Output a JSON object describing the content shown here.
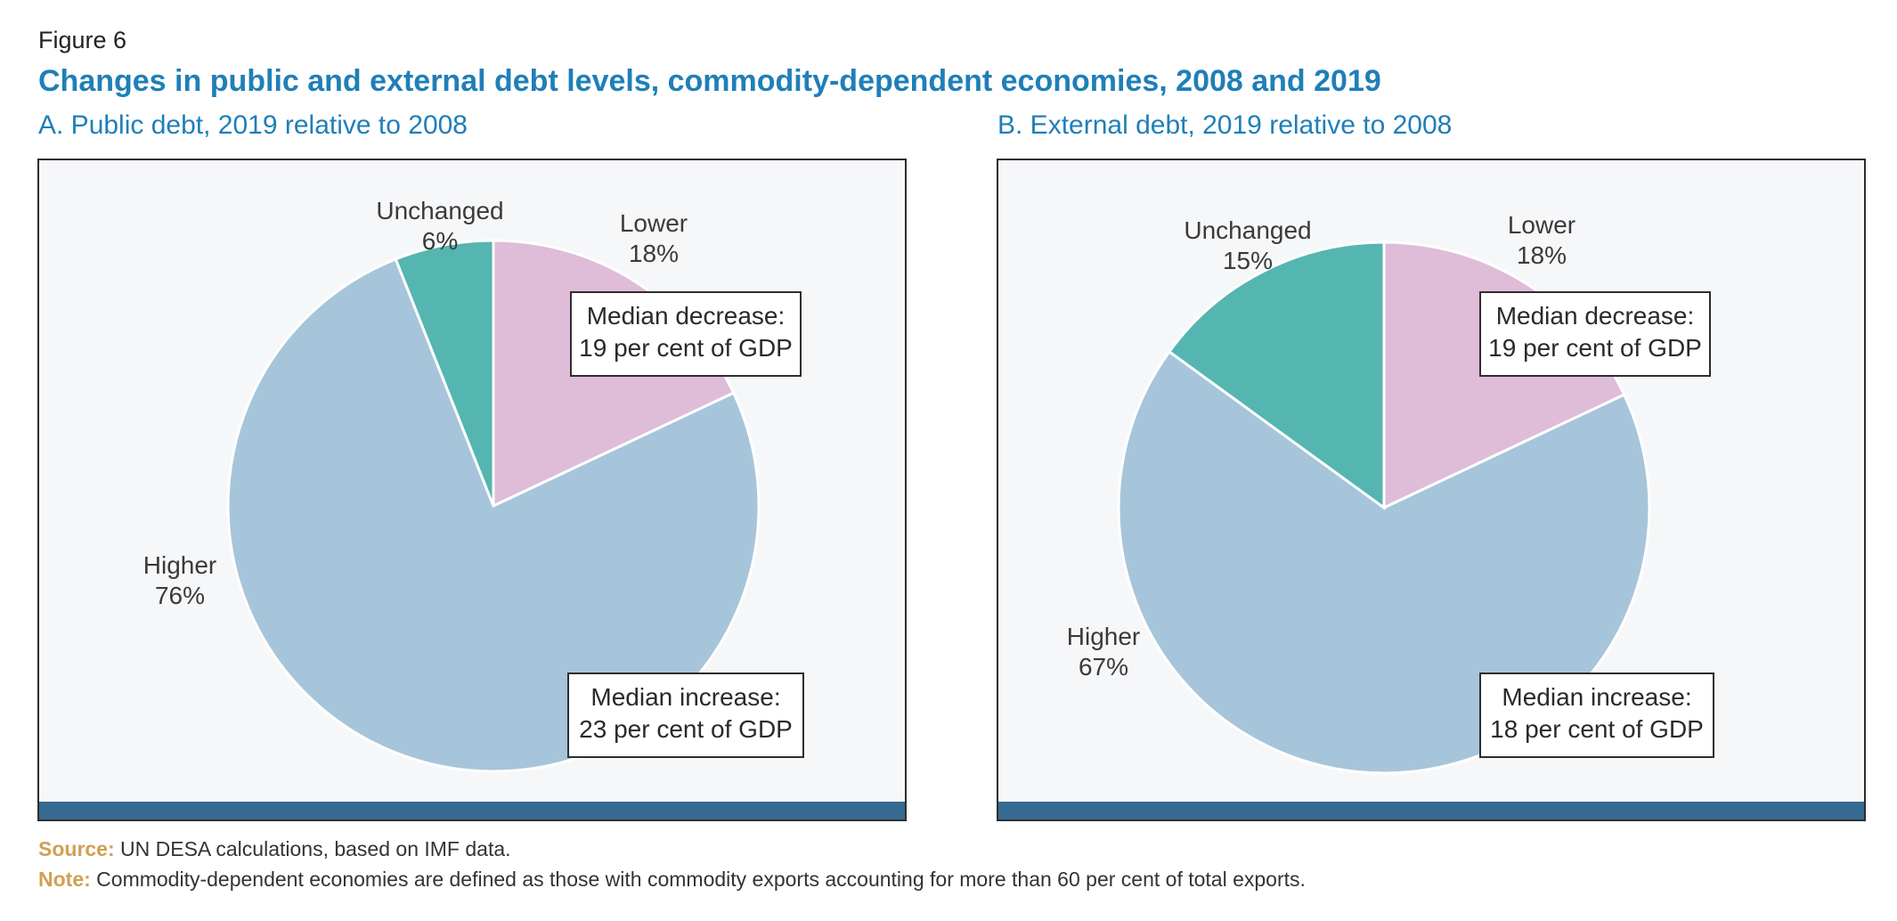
{
  "figure_label": "Figure 6",
  "figure_title": "Changes in public and external debt levels, commodity-dependent economies, 2008 and 2019",
  "colors": {
    "lower": "#dfbcd8",
    "higher": "#a7c5da",
    "unchanged": "#55b5b0",
    "bar": "#356a91",
    "title": "#1f7fb8"
  },
  "chart_data": [
    {
      "type": "pie",
      "title": "A. Public debt, 2019 relative to 2008",
      "slices": [
        {
          "name": "Lower",
          "value": 18,
          "label": "18%"
        },
        {
          "name": "Higher",
          "value": 76,
          "label": "76%"
        },
        {
          "name": "Unchanged",
          "value": 6,
          "label": "6%"
        }
      ],
      "annotations": {
        "decrease": [
          "Median decrease:",
          "19 per cent of GDP"
        ],
        "increase": [
          "Median increase:",
          "23 per cent of GDP"
        ]
      }
    },
    {
      "type": "pie",
      "title": "B. External debt, 2019 relative to 2008",
      "slices": [
        {
          "name": "Lower",
          "value": 18,
          "label": "18%"
        },
        {
          "name": "Higher",
          "value": 67,
          "label": "67%"
        },
        {
          "name": "Unchanged",
          "value": 15,
          "label": "15%"
        }
      ],
      "annotations": {
        "decrease": [
          "Median decrease:",
          "19 per cent of GDP"
        ],
        "increase": [
          "Median increase:",
          "18 per cent of GDP"
        ]
      }
    }
  ],
  "source_label": "Source:",
  "source_text": "UN DESA calculations, based on IMF data.",
  "note_label": "Note:",
  "note_text": "Commodity-dependent economies are defined as those with commodity exports accounting for more than 60 per cent of total exports."
}
